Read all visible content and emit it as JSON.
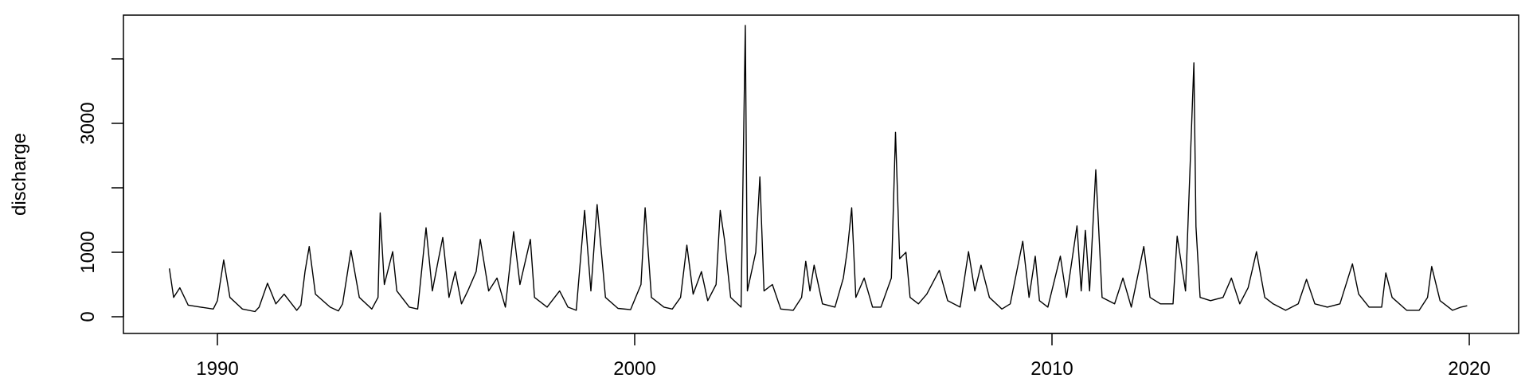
{
  "chart_data": {
    "type": "line",
    "title": "",
    "xlabel": "",
    "ylabel": "discharge",
    "xlim": [
      1987.5,
      2020.6
    ],
    "ylim": [
      0,
      4750
    ],
    "x_ticks": [
      1990,
      2000,
      2010,
      2020
    ],
    "x_tick_labels": [
      "1990",
      "2000",
      "2010",
      "2020"
    ],
    "y_ticks": [
      0,
      1000,
      2000,
      3000,
      4000
    ],
    "y_tick_labels": [
      "0",
      "1000",
      "",
      "3000",
      ""
    ],
    "grid": false,
    "line_color": "#000000",
    "series": [
      {
        "points": [
          [
            1988.85,
            750
          ],
          [
            1988.95,
            300
          ],
          [
            1989.1,
            450
          ],
          [
            1989.3,
            180
          ],
          [
            1989.6,
            150
          ],
          [
            1989.9,
            120
          ],
          [
            1990.0,
            250
          ],
          [
            1990.15,
            880
          ],
          [
            1990.3,
            300
          ],
          [
            1990.6,
            120
          ],
          [
            1990.9,
            80
          ],
          [
            1991.0,
            150
          ],
          [
            1991.2,
            520
          ],
          [
            1991.4,
            200
          ],
          [
            1991.6,
            350
          ],
          [
            1991.9,
            100
          ],
          [
            1992.0,
            180
          ],
          [
            1992.1,
            700
          ],
          [
            1992.2,
            1090
          ],
          [
            1992.35,
            350
          ],
          [
            1992.7,
            150
          ],
          [
            1992.9,
            90
          ],
          [
            1993.0,
            200
          ],
          [
            1993.2,
            1030
          ],
          [
            1993.4,
            300
          ],
          [
            1993.7,
            120
          ],
          [
            1993.85,
            300
          ],
          [
            1993.9,
            1610
          ],
          [
            1994.0,
            500
          ],
          [
            1994.2,
            1010
          ],
          [
            1994.3,
            400
          ],
          [
            1994.6,
            150
          ],
          [
            1994.8,
            120
          ],
          [
            1995.0,
            1380
          ],
          [
            1995.15,
            400
          ],
          [
            1995.3,
            900
          ],
          [
            1995.4,
            1230
          ],
          [
            1995.55,
            300
          ],
          [
            1995.7,
            700
          ],
          [
            1995.85,
            200
          ],
          [
            1996.0,
            400
          ],
          [
            1996.2,
            700
          ],
          [
            1996.3,
            1200
          ],
          [
            1996.5,
            400
          ],
          [
            1996.7,
            600
          ],
          [
            1996.9,
            150
          ],
          [
            1997.1,
            1320
          ],
          [
            1997.25,
            500
          ],
          [
            1997.5,
            1200
          ],
          [
            1997.6,
            300
          ],
          [
            1997.9,
            150
          ],
          [
            1998.2,
            400
          ],
          [
            1998.4,
            150
          ],
          [
            1998.6,
            100
          ],
          [
            1998.8,
            1650
          ],
          [
            1998.95,
            400
          ],
          [
            1999.1,
            1740
          ],
          [
            1999.3,
            300
          ],
          [
            1999.6,
            130
          ],
          [
            1999.9,
            110
          ],
          [
            2000.15,
            500
          ],
          [
            2000.25,
            1690
          ],
          [
            2000.4,
            300
          ],
          [
            2000.7,
            150
          ],
          [
            2000.9,
            120
          ],
          [
            2001.1,
            300
          ],
          [
            2001.25,
            1110
          ],
          [
            2001.4,
            350
          ],
          [
            2001.6,
            700
          ],
          [
            2001.75,
            250
          ],
          [
            2001.95,
            500
          ],
          [
            2002.05,
            1650
          ],
          [
            2002.15,
            1200
          ],
          [
            2002.3,
            300
          ],
          [
            2002.55,
            150
          ],
          [
            2002.65,
            4520
          ],
          [
            2002.7,
            400
          ],
          [
            2002.9,
            1000
          ],
          [
            2003.0,
            2170
          ],
          [
            2003.1,
            400
          ],
          [
            2003.3,
            500
          ],
          [
            2003.5,
            120
          ],
          [
            2003.8,
            100
          ],
          [
            2004.0,
            300
          ],
          [
            2004.1,
            860
          ],
          [
            2004.2,
            400
          ],
          [
            2004.3,
            800
          ],
          [
            2004.5,
            200
          ],
          [
            2004.8,
            150
          ],
          [
            2005.0,
            600
          ],
          [
            2005.1,
            1050
          ],
          [
            2005.2,
            1690
          ],
          [
            2005.3,
            300
          ],
          [
            2005.5,
            600
          ],
          [
            2005.7,
            150
          ],
          [
            2005.9,
            150
          ],
          [
            2006.15,
            600
          ],
          [
            2006.25,
            2860
          ],
          [
            2006.35,
            900
          ],
          [
            2006.5,
            1000
          ],
          [
            2006.6,
            300
          ],
          [
            2006.8,
            200
          ],
          [
            2007.0,
            350
          ],
          [
            2007.3,
            720
          ],
          [
            2007.5,
            250
          ],
          [
            2007.8,
            150
          ],
          [
            2008.0,
            1010
          ],
          [
            2008.15,
            400
          ],
          [
            2008.3,
            800
          ],
          [
            2008.5,
            300
          ],
          [
            2008.8,
            120
          ],
          [
            2009.0,
            200
          ],
          [
            2009.3,
            1170
          ],
          [
            2009.45,
            300
          ],
          [
            2009.6,
            940
          ],
          [
            2009.7,
            250
          ],
          [
            2009.9,
            150
          ],
          [
            2010.2,
            940
          ],
          [
            2010.35,
            300
          ],
          [
            2010.6,
            1410
          ],
          [
            2010.7,
            400
          ],
          [
            2010.8,
            1340
          ],
          [
            2010.9,
            400
          ],
          [
            2011.05,
            2280
          ],
          [
            2011.2,
            300
          ],
          [
            2011.5,
            200
          ],
          [
            2011.7,
            600
          ],
          [
            2011.9,
            150
          ],
          [
            2012.2,
            1090
          ],
          [
            2012.35,
            300
          ],
          [
            2012.6,
            200
          ],
          [
            2012.9,
            200
          ],
          [
            2013.0,
            1250
          ],
          [
            2013.2,
            400
          ],
          [
            2013.4,
            3940
          ],
          [
            2013.45,
            1400
          ],
          [
            2013.55,
            300
          ],
          [
            2013.8,
            250
          ],
          [
            2014.1,
            300
          ],
          [
            2014.3,
            600
          ],
          [
            2014.5,
            200
          ],
          [
            2014.7,
            450
          ],
          [
            2014.9,
            1010
          ],
          [
            2015.1,
            300
          ],
          [
            2015.3,
            200
          ],
          [
            2015.6,
            100
          ],
          [
            2015.9,
            200
          ],
          [
            2016.1,
            580
          ],
          [
            2016.3,
            200
          ],
          [
            2016.6,
            150
          ],
          [
            2016.9,
            200
          ],
          [
            2017.2,
            820
          ],
          [
            2017.35,
            350
          ],
          [
            2017.6,
            150
          ],
          [
            2017.9,
            150
          ],
          [
            2018.0,
            680
          ],
          [
            2018.15,
            300
          ],
          [
            2018.5,
            100
          ],
          [
            2018.8,
            100
          ],
          [
            2019.0,
            300
          ],
          [
            2019.1,
            780
          ],
          [
            2019.3,
            250
          ],
          [
            2019.6,
            100
          ],
          [
            2019.8,
            150
          ],
          [
            2019.95,
            170
          ]
        ]
      }
    ]
  }
}
